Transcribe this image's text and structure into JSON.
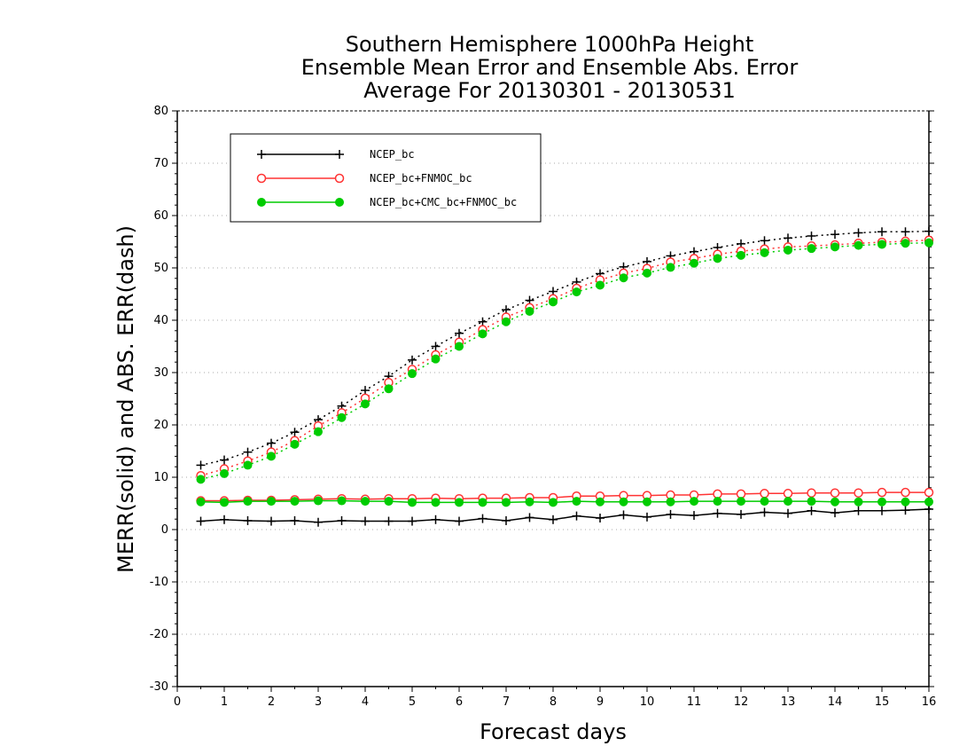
{
  "chart_data": {
    "type": "line",
    "title_lines": [
      "Southern Hemisphere 1000hPa Height",
      "Ensemble Mean Error and Ensemble Abs. Error",
      "Average For 20130301 - 20130531"
    ],
    "xlabel": "Forecast days",
    "ylabel": "MERR(solid) and ABS. ERR(dash)",
    "xlim": [
      0,
      16
    ],
    "ylim": [
      -30,
      80
    ],
    "xticks": [
      "0",
      "1",
      "2",
      "3",
      "4",
      "5",
      "6",
      "7",
      "8",
      "9",
      "10",
      "11",
      "12",
      "13",
      "14",
      "15",
      "16"
    ],
    "yticks": [
      "-30",
      "-20",
      "-10",
      "0",
      "10",
      "20",
      "30",
      "40",
      "50",
      "60",
      "70",
      "80"
    ],
    "grid": "horizontal dotted",
    "legend_position": "top-left",
    "x": [
      0.5,
      1,
      1.5,
      2,
      2.5,
      3,
      3.5,
      4,
      4.5,
      5,
      5.5,
      6,
      6.5,
      7,
      7.5,
      8,
      8.5,
      9,
      9.5,
      10,
      10.5,
      11,
      11.5,
      12,
      12.5,
      13,
      13.5,
      14,
      14.5,
      15,
      15.5,
      16
    ],
    "series": [
      {
        "name": "NCEP_bc",
        "color": "#000000",
        "marker": "plus",
        "merr": [
          1.6,
          1.9,
          1.7,
          1.6,
          1.7,
          1.4,
          1.7,
          1.6,
          1.6,
          1.6,
          1.9,
          1.6,
          2.1,
          1.7,
          2.3,
          1.9,
          2.6,
          2.2,
          2.8,
          2.4,
          2.9,
          2.7,
          3.1,
          2.9,
          3.3,
          3.1,
          3.6,
          3.2,
          3.6,
          3.6,
          3.7,
          3.9
        ],
        "abs_err": [
          12.3,
          13.3,
          14.8,
          16.5,
          18.6,
          21.0,
          23.6,
          26.6,
          29.3,
          32.4,
          35.0,
          37.5,
          39.7,
          42.0,
          43.8,
          45.5,
          47.3,
          48.9,
          50.2,
          51.2,
          52.3,
          53.1,
          53.9,
          54.6,
          55.2,
          55.7,
          56.1,
          56.4,
          56.7,
          56.9,
          56.9,
          57.0
        ]
      },
      {
        "name": "NCEP_bc+FNMOC_bc",
        "color": "#ff3333",
        "marker": "open-circle",
        "merr": [
          5.5,
          5.5,
          5.6,
          5.6,
          5.7,
          5.8,
          5.9,
          5.8,
          5.9,
          5.9,
          6.0,
          5.9,
          6.0,
          6.0,
          6.1,
          6.1,
          6.4,
          6.4,
          6.5,
          6.5,
          6.6,
          6.6,
          6.8,
          6.8,
          6.9,
          6.9,
          7.0,
          7.0,
          7.0,
          7.1,
          7.1,
          7.1
        ],
        "abs_err": [
          10.3,
          11.6,
          13.1,
          14.8,
          17.0,
          19.8,
          22.3,
          25.1,
          28.1,
          30.6,
          33.4,
          35.8,
          38.2,
          40.6,
          42.4,
          44.1,
          46.1,
          47.7,
          49.0,
          49.9,
          51.1,
          51.8,
          52.6,
          53.2,
          53.6,
          54.0,
          54.2,
          54.4,
          54.7,
          54.9,
          55.1,
          55.3
        ]
      },
      {
        "name": "NCEP_bc+CMC_bc+FNMOC_bc",
        "color": "#00cc00",
        "marker": "filled-circle",
        "merr": [
          5.3,
          5.2,
          5.4,
          5.4,
          5.4,
          5.5,
          5.5,
          5.4,
          5.4,
          5.2,
          5.2,
          5.2,
          5.2,
          5.2,
          5.3,
          5.2,
          5.4,
          5.3,
          5.3,
          5.3,
          5.3,
          5.4,
          5.4,
          5.4,
          5.4,
          5.4,
          5.4,
          5.3,
          5.3,
          5.3,
          5.3,
          5.3
        ],
        "abs_err": [
          9.6,
          10.7,
          12.3,
          14.0,
          16.3,
          18.7,
          21.4,
          24.0,
          26.9,
          29.8,
          32.6,
          35.0,
          37.4,
          39.7,
          41.7,
          43.5,
          45.4,
          46.7,
          48.1,
          49.0,
          50.1,
          50.9,
          51.8,
          52.4,
          52.9,
          53.4,
          53.7,
          54.0,
          54.3,
          54.5,
          54.7,
          54.8
        ]
      }
    ]
  }
}
